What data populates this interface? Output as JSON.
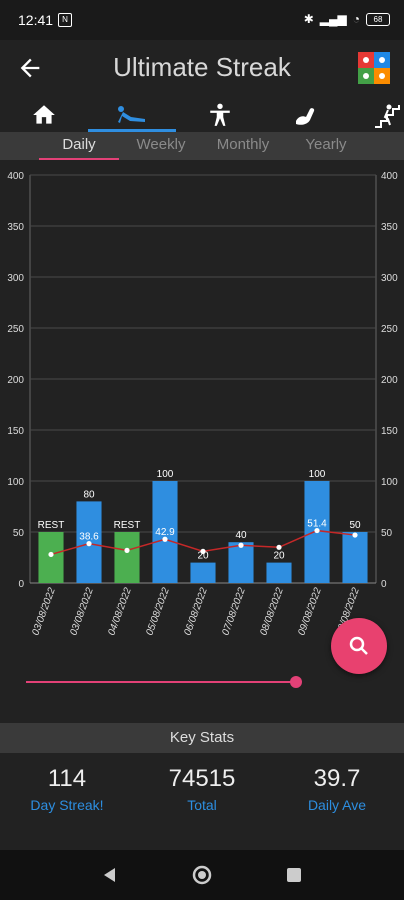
{
  "status": {
    "time": "12:41",
    "badge": "N",
    "battery": "68"
  },
  "app": {
    "title": "Ultimate Streak"
  },
  "category_tabs": [
    "home-icon",
    "exercise-icon",
    "arms-icon",
    "arm-curl-icon",
    "stairs-icon"
  ],
  "period_tabs": [
    "Daily",
    "Weekly",
    "Monthly",
    "Yearly"
  ],
  "chart_data": {
    "type": "bar",
    "categories": [
      "03/08/2022",
      "03/08/2022",
      "04/08/2022",
      "05/08/2022",
      "06/08/2022",
      "07/08/2022",
      "08/08/2022",
      "09/08/2022",
      "10/08/2022"
    ],
    "series": [
      {
        "values": [
          50,
          80,
          50,
          100,
          20,
          40,
          20,
          100,
          50
        ],
        "colors": [
          "#4caf50",
          "#2f8ee0",
          "#4caf50",
          "#2f8ee0",
          "#2f8ee0",
          "#2f8ee0",
          "#2f8ee0",
          "#2f8ee0",
          "#2f8ee0"
        ]
      },
      {
        "type": "line",
        "values": [
          28,
          38.6,
          32,
          42.9,
          31,
          37,
          35,
          51.4,
          47
        ],
        "color": "#c62828"
      }
    ],
    "bar_labels": [
      "REST",
      "80",
      "REST",
      "100",
      "20",
      "40",
      "20",
      "100",
      "50"
    ],
    "avg_labels": [
      "",
      "38.6",
      "",
      "42.9",
      "",
      "",
      "",
      "51.4",
      ""
    ],
    "yticks": [
      "0",
      "50",
      "100",
      "150",
      "200",
      "250",
      "300",
      "350",
      "400"
    ],
    "ylim": [
      0,
      400
    ]
  },
  "key_stats": {
    "header": "Key Stats",
    "items": [
      {
        "value": "114",
        "label": "Day Streak!"
      },
      {
        "value": "74515",
        "label": "Total"
      },
      {
        "value": "39.7",
        "label": "Daily Ave"
      }
    ]
  }
}
